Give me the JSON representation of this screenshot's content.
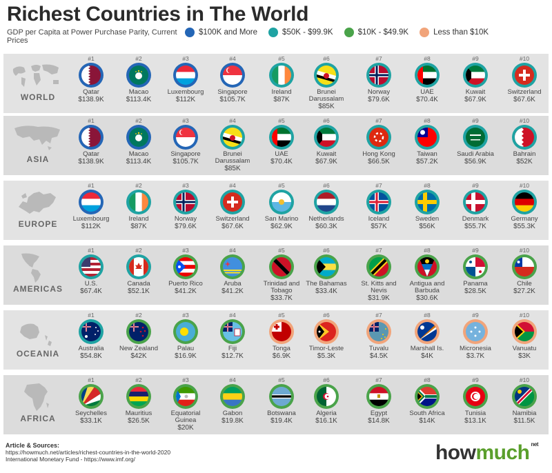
{
  "title": "Richest Countries in The World",
  "subtitle": "GDP per Capita at Power Purchase Parity, Current Prices",
  "legend": [
    {
      "label": "$100K and More",
      "color": "#2466b6"
    },
    {
      "label": "$50K - $99.9K",
      "color": "#1fa3a3"
    },
    {
      "label": "$10K - $49.9K",
      "color": "#4aa34a"
    },
    {
      "label": "Less than $10K",
      "color": "#f1a47a"
    }
  ],
  "regions": [
    {
      "name": "WORLD",
      "countries": [
        {
          "rank": "#1",
          "name": "Qatar",
          "value": "$138.9K",
          "tier": 0,
          "flag": "qatar"
        },
        {
          "rank": "#2",
          "name": "Macao",
          "value": "$113.4K",
          "tier": 0,
          "flag": "macao"
        },
        {
          "rank": "#3",
          "name": "Luxembourg",
          "value": "$112K",
          "tier": 0,
          "flag": "luxembourg"
        },
        {
          "rank": "#4",
          "name": "Singapore",
          "value": "$105.7K",
          "tier": 0,
          "flag": "singapore"
        },
        {
          "rank": "#5",
          "name": "Ireland",
          "value": "$87K",
          "tier": 1,
          "flag": "ireland"
        },
        {
          "rank": "#6",
          "name": "Brunei Darussalam",
          "value": "$85K",
          "tier": 1,
          "flag": "brunei"
        },
        {
          "rank": "#7",
          "name": "Norway",
          "value": "$79.6K",
          "tier": 1,
          "flag": "norway"
        },
        {
          "rank": "#8",
          "name": "UAE",
          "value": "$70.4K",
          "tier": 1,
          "flag": "uae"
        },
        {
          "rank": "#9",
          "name": "Kuwait",
          "value": "$67.9K",
          "tier": 1,
          "flag": "kuwait"
        },
        {
          "rank": "#10",
          "name": "Switzerland",
          "value": "$67.6K",
          "tier": 1,
          "flag": "switzerland"
        }
      ]
    },
    {
      "name": "ASIA",
      "countries": [
        {
          "rank": "#1",
          "name": "Qatar",
          "value": "$138.9K",
          "tier": 0,
          "flag": "qatar"
        },
        {
          "rank": "#2",
          "name": "Macao",
          "value": "$113.4K",
          "tier": 0,
          "flag": "macao"
        },
        {
          "rank": "#3",
          "name": "Singapore",
          "value": "$105.7K",
          "tier": 0,
          "flag": "singapore"
        },
        {
          "rank": "#4",
          "name": "Brunei Darussalam",
          "value": "$85K",
          "tier": 1,
          "flag": "brunei"
        },
        {
          "rank": "#5",
          "name": "UAE",
          "value": "$70.4K",
          "tier": 1,
          "flag": "uae"
        },
        {
          "rank": "#6",
          "name": "Kuwait",
          "value": "$67.9K",
          "tier": 1,
          "flag": "kuwait"
        },
        {
          "rank": "#7",
          "name": "Hong Kong",
          "value": "$66.5K",
          "tier": 1,
          "flag": "hongkong"
        },
        {
          "rank": "#8",
          "name": "Taiwan",
          "value": "$57.2K",
          "tier": 1,
          "flag": "taiwan"
        },
        {
          "rank": "#9",
          "name": "Saudi Arabia",
          "value": "$56.9K",
          "tier": 1,
          "flag": "saudi"
        },
        {
          "rank": "#10",
          "name": "Bahrain",
          "value": "$52K",
          "tier": 1,
          "flag": "bahrain"
        }
      ]
    },
    {
      "name": "EUROPE",
      "countries": [
        {
          "rank": "#1",
          "name": "Luxembourg",
          "value": "$112K",
          "tier": 0,
          "flag": "luxembourg"
        },
        {
          "rank": "#2",
          "name": "Ireland",
          "value": "$87K",
          "tier": 1,
          "flag": "ireland"
        },
        {
          "rank": "#3",
          "name": "Norway",
          "value": "$79.6K",
          "tier": 1,
          "flag": "norway"
        },
        {
          "rank": "#4",
          "name": "Switzerland",
          "value": "$67.6K",
          "tier": 1,
          "flag": "switzerland"
        },
        {
          "rank": "#5",
          "name": "San Marino",
          "value": "$62.9K",
          "tier": 1,
          "flag": "sanmarino"
        },
        {
          "rank": "#6",
          "name": "Netherlands",
          "value": "$60.3K",
          "tier": 1,
          "flag": "netherlands"
        },
        {
          "rank": "#7",
          "name": "Iceland",
          "value": "$57K",
          "tier": 1,
          "flag": "iceland"
        },
        {
          "rank": "#8",
          "name": "Sweden",
          "value": "$56K",
          "tier": 1,
          "flag": "sweden"
        },
        {
          "rank": "#9",
          "name": "Denmark",
          "value": "$55.7K",
          "tier": 1,
          "flag": "denmark"
        },
        {
          "rank": "#10",
          "name": "Germany",
          "value": "$55.3K",
          "tier": 1,
          "flag": "germany"
        }
      ]
    },
    {
      "name": "AMERICAS",
      "countries": [
        {
          "rank": "#1",
          "name": "U.S.",
          "value": "$67.4K",
          "tier": 1,
          "flag": "us"
        },
        {
          "rank": "#2",
          "name": "Canada",
          "value": "$52.1K",
          "tier": 1,
          "flag": "canada"
        },
        {
          "rank": "#3",
          "name": "Puerto Rico",
          "value": "$41.2K",
          "tier": 2,
          "flag": "puertorico"
        },
        {
          "rank": "#4",
          "name": "Aruba",
          "value": "$41.2K",
          "tier": 2,
          "flag": "aruba"
        },
        {
          "rank": "#5",
          "name": "Trinidad and Tobago",
          "value": "$33.7K",
          "tier": 2,
          "flag": "trinidad"
        },
        {
          "rank": "#6",
          "name": "The Bahamas",
          "value": "$33.4K",
          "tier": 2,
          "flag": "bahamas"
        },
        {
          "rank": "#7",
          "name": "St. Kitts and Nevis",
          "value": "$31.9K",
          "tier": 2,
          "flag": "stkitts"
        },
        {
          "rank": "#8",
          "name": "Antigua and Barbuda",
          "value": "$30.6K",
          "tier": 2,
          "flag": "antigua"
        },
        {
          "rank": "#9",
          "name": "Panama",
          "value": "$28.5K",
          "tier": 2,
          "flag": "panama"
        },
        {
          "rank": "#10",
          "name": "Chile",
          "value": "$27.2K",
          "tier": 2,
          "flag": "chile"
        }
      ]
    },
    {
      "name": "OCEANIA",
      "countries": [
        {
          "rank": "#1",
          "name": "Australia",
          "value": "$54.8K",
          "tier": 1,
          "flag": "australia"
        },
        {
          "rank": "#2",
          "name": "New Zealand",
          "value": "$42K",
          "tier": 2,
          "flag": "newzealand"
        },
        {
          "rank": "#3",
          "name": "Palau",
          "value": "$16.9K",
          "tier": 2,
          "flag": "palau"
        },
        {
          "rank": "#4",
          "name": "Fiji",
          "value": "$12.7K",
          "tier": 2,
          "flag": "fiji"
        },
        {
          "rank": "#5",
          "name": "Tonga",
          "value": "$6.9K",
          "tier": 3,
          "flag": "tonga"
        },
        {
          "rank": "#6",
          "name": "Timor-Leste",
          "value": "$5.3K",
          "tier": 3,
          "flag": "timor"
        },
        {
          "rank": "#7",
          "name": "Tuvalu",
          "value": "$4.5K",
          "tier": 3,
          "flag": "tuvalu"
        },
        {
          "rank": "#8",
          "name": "Marshall Is.",
          "value": "$4K",
          "tier": 3,
          "flag": "marshall"
        },
        {
          "rank": "#9",
          "name": "Micronesia",
          "value": "$3.7K",
          "tier": 3,
          "flag": "micronesia"
        },
        {
          "rank": "#10",
          "name": "Vanuatu",
          "value": "$3K",
          "tier": 3,
          "flag": "vanuatu"
        }
      ]
    },
    {
      "name": "AFRICA",
      "countries": [
        {
          "rank": "#1",
          "name": "Seychelles",
          "value": "$33.1K",
          "tier": 2,
          "flag": "seychelles"
        },
        {
          "rank": "#2",
          "name": "Mauritius",
          "value": "$26.5K",
          "tier": 2,
          "flag": "mauritius"
        },
        {
          "rank": "#3",
          "name": "Equatorial Guinea",
          "value": "$20K",
          "tier": 2,
          "flag": "eqguinea"
        },
        {
          "rank": "#4",
          "name": "Gabon",
          "value": "$19.8K",
          "tier": 2,
          "flag": "gabon"
        },
        {
          "rank": "#5",
          "name": "Botswana",
          "value": "$19.4K",
          "tier": 2,
          "flag": "botswana"
        },
        {
          "rank": "#6",
          "name": "Algeria",
          "value": "$16.1K",
          "tier": 2,
          "flag": "algeria"
        },
        {
          "rank": "#7",
          "name": "Egypt",
          "value": "$14.8K",
          "tier": 2,
          "flag": "egypt"
        },
        {
          "rank": "#8",
          "name": "South Africa",
          "value": "$14K",
          "tier": 2,
          "flag": "southafrica"
        },
        {
          "rank": "#9",
          "name": "Tunisia",
          "value": "$13.1K",
          "tier": 2,
          "flag": "tunisia"
        },
        {
          "rank": "#10",
          "name": "Namibia",
          "value": "$11.5K",
          "tier": 2,
          "flag": "namibia"
        }
      ]
    }
  ],
  "sources": {
    "heading": "Article & Sources:",
    "line1": "https://howmuch.net/articles/richest-countries-in-the-world-2020",
    "line2": "International Monetary Fund - https://www.imf.org/"
  },
  "brand": {
    "how": "how",
    "much": "much",
    "net": "net"
  }
}
